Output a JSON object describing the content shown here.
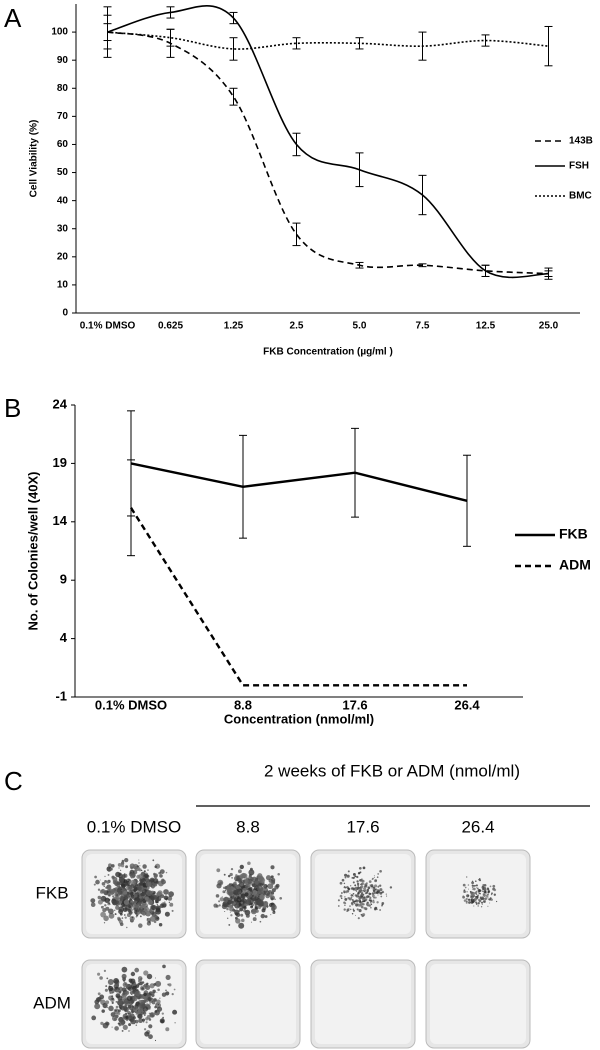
{
  "chart_data": [
    {
      "type": "line",
      "panel_label": "A",
      "x_label": "FKB Concentration (µg/ml )",
      "y_label": "Cell Viability (%)",
      "categories": [
        "0.1% DMSO",
        "0.625",
        "1.25",
        "2.5",
        "5.0",
        "7.5",
        "12.5",
        "25.0"
      ],
      "ylim": [
        0,
        110
      ],
      "yticks": [
        0,
        10,
        20,
        30,
        40,
        50,
        60,
        70,
        80,
        90,
        100
      ],
      "smooth": true,
      "legend": "right",
      "series": [
        {
          "name": "143B",
          "color": "#000000",
          "dash": "dashed",
          "values": [
            100,
            96,
            77,
            28,
            17,
            17,
            15,
            14
          ],
          "error": [
            3,
            5,
            3,
            4,
            1,
            0.5,
            2,
            1
          ]
        },
        {
          "name": "FSH",
          "color": "#000000",
          "dash": "solid",
          "values": [
            100,
            107,
            105,
            60,
            51,
            42,
            15,
            14
          ],
          "error": [
            9,
            2,
            2,
            4,
            6,
            7,
            2,
            2
          ]
        },
        {
          "name": "BMC",
          "color": "#000000",
          "dash": "dotted",
          "values": [
            100,
            98,
            94,
            96,
            96,
            95,
            97,
            95
          ],
          "error": [
            6,
            3,
            4,
            2,
            2,
            5,
            2,
            7
          ]
        }
      ]
    },
    {
      "type": "line",
      "panel_label": "B",
      "x_label": "Concentration (nmol/ml)",
      "y_label": "No. of Colonies/well (40X)",
      "categories": [
        "0.1% DMSO",
        "8.8",
        "17.6",
        "26.4"
      ],
      "ylim": [
        -1,
        24
      ],
      "yticks": [
        -1,
        4,
        9,
        14,
        19,
        24
      ],
      "smooth": false,
      "legend": "right",
      "series": [
        {
          "name": "FKB",
          "color": "#000000",
          "dash": "solid",
          "values": [
            19,
            17,
            18.2,
            15.8
          ],
          "error": [
            4.5,
            4.4,
            3.8,
            3.9
          ]
        },
        {
          "name": "ADM",
          "color": "#000000",
          "dash": "dashed",
          "values": [
            15.2,
            0,
            0,
            0
          ],
          "error": [
            4.1,
            null,
            null,
            null
          ]
        }
      ]
    }
  ],
  "photo_panel": {
    "label": "C",
    "header": "2 weeks of FKB or ADM (nmol/ml)",
    "columns": [
      "0.1% DMSO",
      "8.8",
      "17.6",
      "26.4"
    ],
    "rows": [
      "FKB",
      "ADM"
    ]
  }
}
